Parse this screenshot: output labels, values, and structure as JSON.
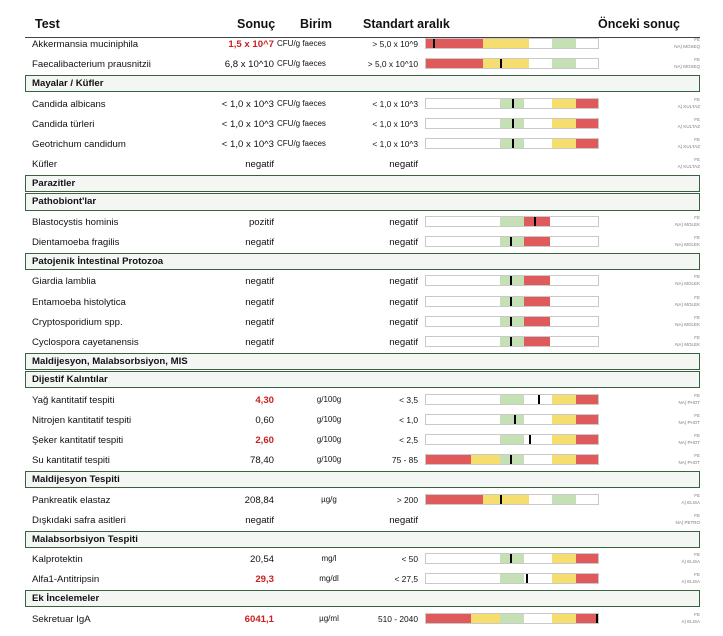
{
  "header": {
    "test": "Test",
    "result": "Sonuç",
    "unit": "Birim",
    "range": "Standart aralık",
    "previous": "Önceki sonuç"
  },
  "colors": {
    "red": "#df5b5b",
    "yellow": "#f5dd6e",
    "green": "#c4e0b4",
    "section_border": "#39613f",
    "highlight_text": "#cc1f1f"
  },
  "rows": [
    {
      "kind": "row",
      "name": "Akkermansia muciniphila",
      "value": "1,5 x 10^7",
      "highlight": true,
      "unit": "CFU/g faeces",
      "range": "> 5,0 x 10^9",
      "bar": "low",
      "level": 0.04,
      "prev1": "FE",
      "prev2": "NA) MOSEQ"
    },
    {
      "kind": "row",
      "name": "Faecalibacterium prausnitzii",
      "value": "6,8 x 10^10",
      "highlight": false,
      "unit": "CFU/g faeces",
      "range": "> 5,0 x 10^10",
      "bar": "low",
      "level": 0.43,
      "prev1": "FE",
      "prev2": "NA) MOSEQ"
    },
    {
      "kind": "section",
      "title": "Mayalar / Küfler"
    },
    {
      "kind": "row",
      "name": "Candida albicans",
      "value": "< 1,0 x 10^3",
      "highlight": false,
      "unit": "CFU/g faeces",
      "range": "< 1,0 x 10^3",
      "bar": "max",
      "level": 0.5,
      "prev1": "FE",
      "prev2": "A) KULTAZ"
    },
    {
      "kind": "row",
      "name": "Candida türleri",
      "value": "< 1,0 x 10^3",
      "highlight": false,
      "unit": "CFU/g faeces",
      "range": "< 1,0 x 10^3",
      "bar": "max",
      "level": 0.5,
      "prev1": "FE",
      "prev2": "A) KULTAZ"
    },
    {
      "kind": "row",
      "name": "Geotrichum candidum",
      "value": "< 1,0 x 10^3",
      "highlight": false,
      "unit": "CFU/g faeces",
      "range": "< 1,0 x 10^3",
      "bar": "max",
      "level": 0.5,
      "prev1": "FE",
      "prev2": "A) KULTAZ"
    },
    {
      "kind": "row",
      "name": "Küfler",
      "value": "negatif",
      "highlight": false,
      "unit": "",
      "range": "negatif",
      "bar": "none",
      "prev1": "FE",
      "prev2": "A) KULTAZ"
    },
    {
      "kind": "section",
      "title": "Parazitler"
    },
    {
      "kind": "section",
      "title": "Pathobiont'lar"
    },
    {
      "kind": "row",
      "name": "Blastocystis hominis",
      "value": "pozitif",
      "highlight": false,
      "unit": "",
      "range": "negatif",
      "bar": "neg",
      "level": 0.63,
      "prev1": "FE",
      "prev2": "NA) MOLEK"
    },
    {
      "kind": "row",
      "name": "Dientamoeba fragilis",
      "value": "negatif",
      "highlight": false,
      "unit": "",
      "range": "negatif",
      "bar": "neg",
      "level": 0.49,
      "prev1": "FE",
      "prev2": "NA) MOLEK"
    },
    {
      "kind": "section",
      "title": "Patojenik İntestinal Protozoa"
    },
    {
      "kind": "row",
      "name": "Giardia lamblia",
      "value": "negatif",
      "highlight": false,
      "unit": "",
      "range": "negatif",
      "bar": "neg",
      "level": 0.49,
      "prev1": "FE",
      "prev2": "NA) MOLEK"
    },
    {
      "kind": "row",
      "name": "Entamoeba histolytica",
      "value": "negatif",
      "highlight": false,
      "unit": "",
      "range": "negatif",
      "bar": "neg",
      "level": 0.49,
      "prev1": "FE",
      "prev2": "NA) MOLEK"
    },
    {
      "kind": "row",
      "name": "Cryptosporidium spp.",
      "value": "negatif",
      "highlight": false,
      "unit": "",
      "range": "negatif",
      "bar": "neg",
      "level": 0.49,
      "prev1": "FE",
      "prev2": "NA) MOLEK"
    },
    {
      "kind": "row",
      "name": "Cyclospora cayetanensis",
      "value": "negatif",
      "highlight": false,
      "unit": "",
      "range": "negatif",
      "bar": "neg",
      "level": 0.49,
      "prev1": "FE",
      "prev2": "NA) MOLEK"
    },
    {
      "kind": "section",
      "title": "Maldijesyon, Malabsorbsiyon, MIS"
    },
    {
      "kind": "section",
      "title": "Dijestif Kalıntılar"
    },
    {
      "kind": "row",
      "name": "Yağ kantitatif tespiti",
      "value": "4,30",
      "highlight": true,
      "unit": "g/100g",
      "range": "< 3,5",
      "bar": "max",
      "level": 0.65,
      "prev1": "FE",
      "prev2": "NA) PHOT"
    },
    {
      "kind": "row",
      "name": "Nitrojen kantitatif tespiti",
      "value": "0,60",
      "highlight": false,
      "unit": "g/100g",
      "range": "< 1,0",
      "bar": "max",
      "level": 0.51,
      "prev1": "FE",
      "prev2": "NA) PHOT"
    },
    {
      "kind": "row",
      "name": "Şeker kantitatif tespiti",
      "value": "2,60",
      "highlight": true,
      "unit": "g/100g",
      "range": "< 2,5",
      "bar": "max",
      "level": 0.6,
      "prev1": "FE",
      "prev2": "NA) PHOT"
    },
    {
      "kind": "row",
      "name": "Su kantitatif tespiti",
      "value": "78,40",
      "highlight": false,
      "unit": "g/100g",
      "range": "75 - 85",
      "bar": "both",
      "level": 0.49,
      "prev1": "FE",
      "prev2": "NA) PHOT"
    },
    {
      "kind": "section",
      "title": "Maldijesyon Tespiti"
    },
    {
      "kind": "row",
      "name": "Pankreatik elastaz",
      "value": "208,84",
      "highlight": false,
      "unit": "µg/g",
      "range": "> 200",
      "bar": "low",
      "level": 0.43,
      "prev1": "FE",
      "prev2": "A) ELISA"
    },
    {
      "kind": "row",
      "name": "Dışkıdaki safra asitleri",
      "value": "negatif",
      "highlight": false,
      "unit": "",
      "range": "negatif",
      "bar": "none",
      "prev1": "FE",
      "prev2": "NA) PETRO"
    },
    {
      "kind": "section",
      "title": "Malabsorbsiyon Tespiti"
    },
    {
      "kind": "row",
      "name": "Kalprotektin",
      "value": "20,54",
      "highlight": false,
      "unit": "mg/l",
      "range": "< 50",
      "bar": "max",
      "level": 0.49,
      "prev1": "FE",
      "prev2": "A) ELISA"
    },
    {
      "kind": "row",
      "name": "Alfa1-Antitripsin",
      "value": "29,3",
      "highlight": true,
      "unit": "mg/dl",
      "range": "< 27,5",
      "bar": "max",
      "level": 0.58,
      "prev1": "FE",
      "prev2": "A) ELISA"
    },
    {
      "kind": "section",
      "title": "Ek İncelemeler"
    },
    {
      "kind": "row",
      "name": "Sekretuar IgA",
      "value": "6041,1",
      "highlight": true,
      "unit": "µg/ml",
      "range": "510 - 2040",
      "bar": "both",
      "level": 0.99,
      "prev1": "FE",
      "prev2": "A) ELISA"
    }
  ]
}
